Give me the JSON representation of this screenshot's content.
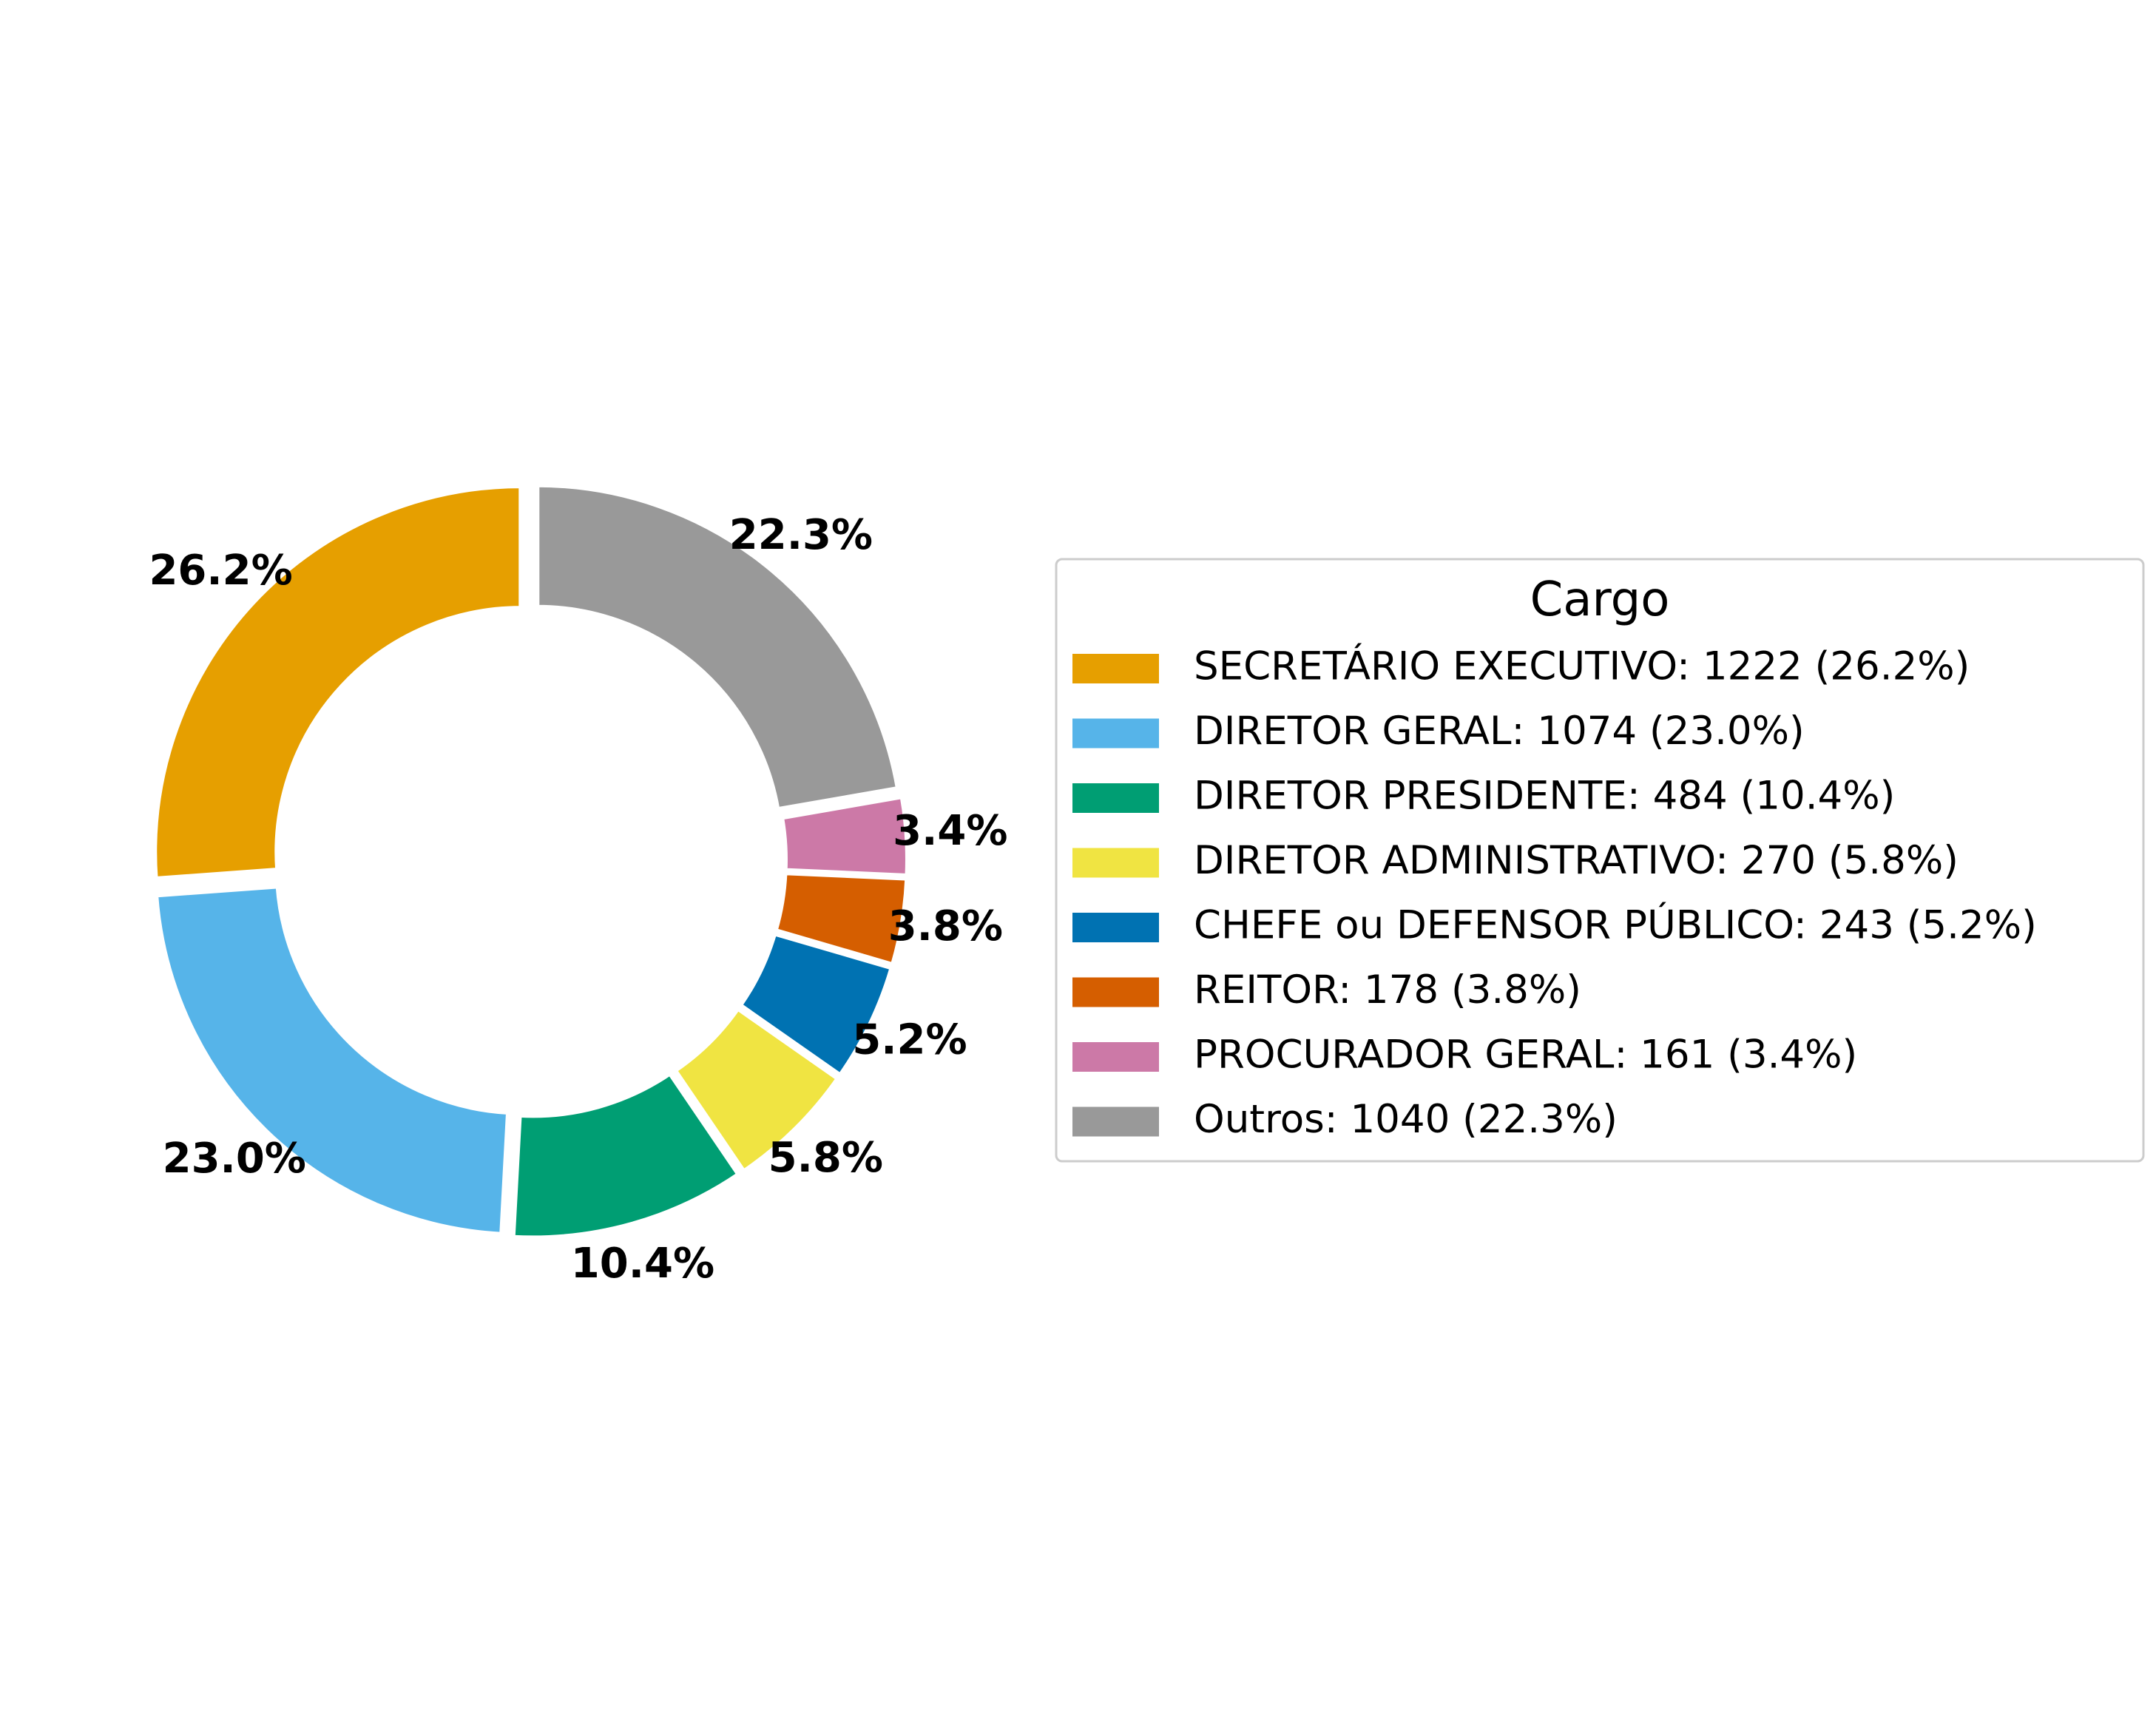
{
  "chart_data": {
    "type": "pie",
    "donut": true,
    "start_angle_deg": 90,
    "direction": "counterclockwise",
    "slices": [
      {
        "label": "SECRETÁRIO EXECUTIVO",
        "value": 1222,
        "percent": "26.2%",
        "legend": "SECRETÁRIO EXECUTIVO: 1222 (26.2%)",
        "color": "#E69F00"
      },
      {
        "label": "DIRETOR GERAL",
        "value": 1074,
        "percent": "23.0%",
        "legend": "DIRETOR GERAL: 1074 (23.0%)",
        "color": "#56B4E9"
      },
      {
        "label": "DIRETOR PRESIDENTE",
        "value": 484,
        "percent": "10.4%",
        "legend": "DIRETOR PRESIDENTE: 484 (10.4%)",
        "color": "#009E73"
      },
      {
        "label": "DIRETOR ADMINISTRATIVO",
        "value": 270,
        "percent": "5.8%",
        "legend": "DIRETOR ADMINISTRATIVO: 270 (5.8%)",
        "color": "#F0E442"
      },
      {
        "label": "CHEFE ou DEFENSOR PÚBLICO",
        "value": 243,
        "percent": "5.2%",
        "legend": "CHEFE ou DEFENSOR PÚBLICO: 243 (5.2%)",
        "color": "#0072B2"
      },
      {
        "label": "REITOR",
        "value": 178,
        "percent": "3.8%",
        "legend": "REITOR: 178 (3.8%)",
        "color": "#D55E00"
      },
      {
        "label": "PROCURADOR GERAL",
        "value": 161,
        "percent": "3.4%",
        "legend": "PROCURADOR GERAL: 161 (3.4%)",
        "color": "#CC79A7"
      },
      {
        "label": "Outros",
        "value": 1040,
        "percent": "22.3%",
        "legend": "Outros: 1040 (22.3%)",
        "color": "#999999"
      }
    ],
    "legend_title": "Cargo",
    "legend_placement": "right"
  }
}
